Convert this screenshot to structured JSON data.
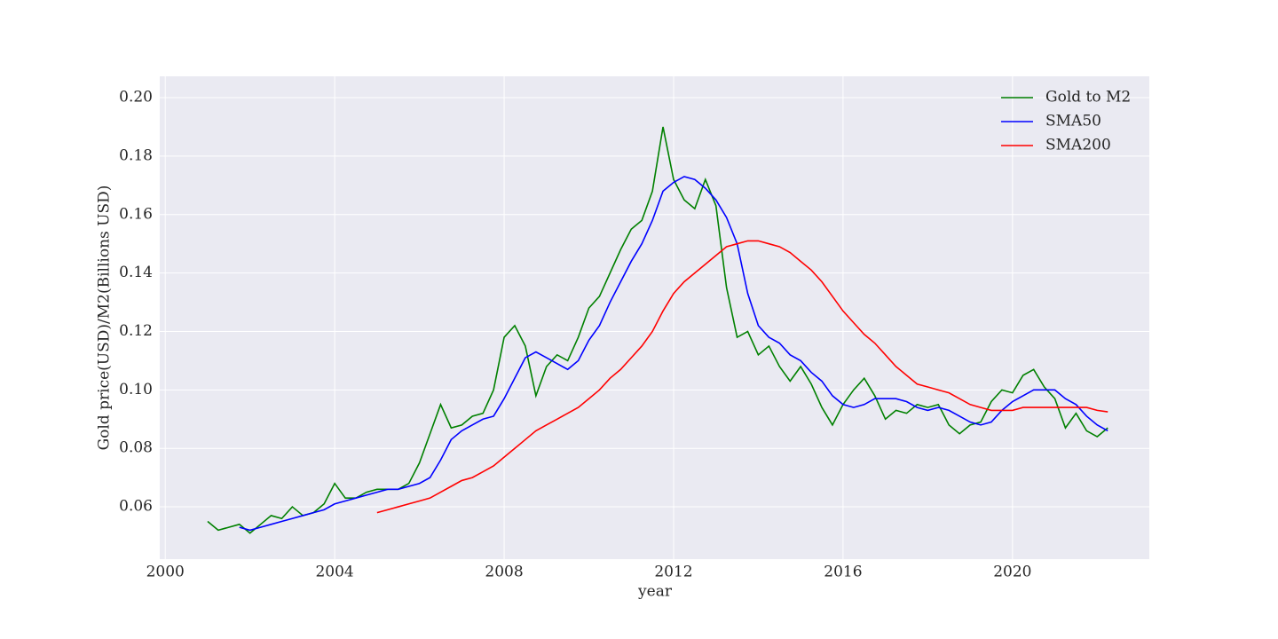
{
  "chart_data": {
    "type": "line",
    "xlabel": "year",
    "ylabel": "Gold price(USD)/M2(Billions USD)",
    "x": [
      2001,
      2001.25,
      2001.5,
      2001.75,
      2002,
      2002.25,
      2002.5,
      2002.75,
      2003,
      2003.25,
      2003.5,
      2003.75,
      2004,
      2004.25,
      2004.5,
      2004.75,
      2005,
      2005.25,
      2005.5,
      2005.75,
      2006,
      2006.25,
      2006.5,
      2006.75,
      2007,
      2007.25,
      2007.5,
      2007.75,
      2008,
      2008.25,
      2008.5,
      2008.75,
      2009,
      2009.25,
      2009.5,
      2009.75,
      2010,
      2010.25,
      2010.5,
      2010.75,
      2011,
      2011.25,
      2011.5,
      2011.75,
      2012,
      2012.25,
      2012.5,
      2012.75,
      2013,
      2013.25,
      2013.5,
      2013.75,
      2014,
      2014.25,
      2014.5,
      2014.75,
      2015,
      2015.25,
      2015.5,
      2015.75,
      2016,
      2016.25,
      2016.5,
      2016.75,
      2017,
      2017.25,
      2017.5,
      2017.75,
      2018,
      2018.25,
      2018.5,
      2018.75,
      2019,
      2019.25,
      2019.5,
      2019.75,
      2020,
      2020.25,
      2020.5,
      2020.75,
      2021,
      2021.25,
      2021.5,
      2021.75,
      2022,
      2022.25
    ],
    "series": [
      {
        "name": "Gold to M2",
        "color": "#008000",
        "values": [
          0.055,
          0.052,
          0.053,
          0.054,
          0.051,
          0.054,
          0.057,
          0.056,
          0.06,
          0.057,
          0.058,
          0.061,
          0.068,
          0.063,
          0.063,
          0.065,
          0.066,
          0.066,
          0.066,
          0.068,
          0.075,
          0.085,
          0.095,
          0.087,
          0.088,
          0.091,
          0.092,
          0.1,
          0.118,
          0.122,
          0.115,
          0.098,
          0.108,
          0.112,
          0.11,
          0.118,
          0.128,
          0.132,
          0.14,
          0.148,
          0.155,
          0.158,
          0.168,
          0.19,
          0.172,
          0.165,
          0.162,
          0.172,
          0.163,
          0.135,
          0.118,
          0.12,
          0.112,
          0.115,
          0.108,
          0.103,
          0.108,
          0.102,
          0.094,
          0.088,
          0.095,
          0.1,
          0.104,
          0.098,
          0.09,
          0.093,
          0.092,
          0.095,
          0.094,
          0.095,
          0.088,
          0.085,
          0.088,
          0.089,
          0.096,
          0.1,
          0.099,
          0.105,
          0.107,
          0.101,
          0.097,
          0.087,
          0.092,
          0.086,
          0.084,
          0.087
        ]
      },
      {
        "name": "SMA50",
        "color": "#0000ff",
        "values": [
          null,
          null,
          null,
          0.053,
          0.052,
          0.053,
          0.054,
          0.055,
          0.056,
          0.057,
          0.058,
          0.059,
          0.061,
          0.062,
          0.063,
          0.064,
          0.065,
          0.066,
          0.066,
          0.067,
          0.068,
          0.07,
          0.076,
          0.083,
          0.086,
          0.088,
          0.09,
          0.091,
          0.097,
          0.104,
          0.111,
          0.113,
          0.111,
          0.109,
          0.107,
          0.11,
          0.117,
          0.122,
          0.13,
          0.137,
          0.144,
          0.15,
          0.158,
          0.168,
          0.171,
          0.173,
          0.172,
          0.169,
          0.165,
          0.159,
          0.15,
          0.133,
          0.122,
          0.118,
          0.116,
          0.112,
          0.11,
          0.106,
          0.103,
          0.098,
          0.095,
          0.094,
          0.095,
          0.097,
          0.097,
          0.097,
          0.096,
          0.094,
          0.093,
          0.094,
          0.093,
          0.091,
          0.089,
          0.088,
          0.089,
          0.093,
          0.096,
          0.098,
          0.1,
          0.1,
          0.1,
          0.097,
          0.095,
          0.091,
          0.088,
          0.086
        ]
      },
      {
        "name": "SMA200",
        "color": "#ff0000",
        "values": [
          null,
          null,
          null,
          null,
          null,
          null,
          null,
          null,
          null,
          null,
          null,
          null,
          null,
          null,
          null,
          null,
          0.058,
          0.059,
          0.06,
          0.061,
          0.062,
          0.063,
          0.065,
          0.067,
          0.069,
          0.07,
          0.072,
          0.074,
          0.077,
          0.08,
          0.083,
          0.086,
          0.088,
          0.09,
          0.092,
          0.094,
          0.097,
          0.1,
          0.104,
          0.107,
          0.111,
          0.115,
          0.12,
          0.127,
          0.133,
          0.137,
          0.14,
          0.143,
          0.146,
          0.149,
          0.15,
          0.151,
          0.151,
          0.15,
          0.149,
          0.147,
          0.144,
          0.141,
          0.137,
          0.132,
          0.127,
          0.123,
          0.119,
          0.116,
          0.112,
          0.108,
          0.105,
          0.102,
          0.101,
          0.1,
          0.099,
          0.097,
          0.095,
          0.094,
          0.093,
          0.093,
          0.093,
          0.094,
          0.094,
          0.094,
          0.094,
          0.094,
          0.094,
          0.094,
          0.093,
          0.0925
        ]
      }
    ],
    "xlim": [
      1999.87,
      2023.23
    ],
    "xticks": [
      2000,
      2004,
      2008,
      2012,
      2016,
      2020
    ],
    "ylim": [
      0.0421,
      0.2073
    ],
    "yticks": [
      0.06,
      0.08,
      {
        "value": 0.1,
        "label": "0.10"
      },
      0.12,
      0.14,
      0.16,
      0.18,
      {
        "value": 0.2,
        "label": "0.20"
      }
    ],
    "grid": true,
    "legend": "upper right"
  }
}
